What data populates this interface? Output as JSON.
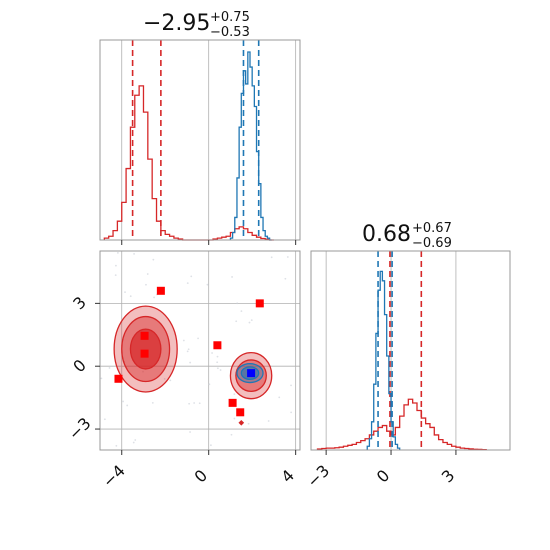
{
  "colors": {
    "red": "#d62728",
    "blue": "#1f77b4",
    "marker_red": "#ff0000",
    "marker_blue": "#0000ff",
    "grid": "#b0b0b0",
    "frame": "#999999"
  },
  "chart_data": [
    {
      "type": "histogram",
      "panel": "top-left",
      "title": "−2.95",
      "title_upper": "+0.75",
      "title_lower": "−0.53",
      "xlim": [
        -5.0,
        4.2
      ],
      "x_ticks": [
        "−4",
        "0",
        "4"
      ],
      "x_tick_values": [
        -4,
        0,
        4
      ],
      "grid": true,
      "series": [
        {
          "color": "#d62728",
          "quantile_lines": [
            -3.5,
            -2.2
          ],
          "bin_edges": [
            -4.8,
            -4.6,
            -4.4,
            -4.2,
            -4.0,
            -3.8,
            -3.6,
            -3.4,
            -3.2,
            -3.0,
            -2.8,
            -2.6,
            -2.4,
            -2.2,
            -2.0,
            -1.8,
            -1.6,
            -1.4,
            -1.2,
            -1.0,
            -0.8,
            -0.6,
            -0.4,
            -0.2,
            0.0,
            0.2,
            0.4,
            0.6,
            0.8,
            1.0,
            1.2,
            1.4,
            1.6,
            1.8,
            2.0,
            2.2,
            2.4,
            2.6,
            2.8,
            3.0
          ],
          "counts": [
            0.01,
            0.02,
            0.05,
            0.1,
            0.2,
            0.38,
            0.6,
            0.77,
            0.82,
            0.68,
            0.43,
            0.22,
            0.1,
            0.05,
            0.03,
            0.02,
            0.01,
            0.005,
            0.0,
            0.0,
            0.0,
            0.0,
            0.0,
            0.0,
            0.0,
            0.005,
            0.01,
            0.015,
            0.02,
            0.04,
            0.06,
            0.07,
            0.06,
            0.04,
            0.025,
            0.015,
            0.008,
            0.004,
            0.0
          ]
        },
        {
          "color": "#1f77b4",
          "quantile_lines": [
            1.6,
            2.3
          ],
          "bin_edges": [
            1.0,
            1.1,
            1.2,
            1.3,
            1.4,
            1.5,
            1.6,
            1.7,
            1.8,
            1.9,
            2.0,
            2.1,
            2.2,
            2.3,
            2.4,
            2.5,
            2.6,
            2.7,
            2.8,
            2.9
          ],
          "counts": [
            0.01,
            0.04,
            0.12,
            0.33,
            0.6,
            0.78,
            0.9,
            0.83,
            1.0,
            0.92,
            0.82,
            0.71,
            0.47,
            0.3,
            0.12,
            0.05,
            0.02,
            0.01,
            0.0
          ]
        }
      ]
    },
    {
      "type": "contour",
      "panel": "bottom-left",
      "xlim": [
        -5.0,
        4.2
      ],
      "ylim": [
        -4.0,
        5.5
      ],
      "x_ticks": [
        "−4",
        "0",
        "4"
      ],
      "x_tick_values": [
        -4,
        0,
        4
      ],
      "y_ticks": [
        "−3",
        "0",
        "3"
      ],
      "y_tick_values": [
        -3,
        0,
        3
      ],
      "grid": true,
      "red_contours": [
        {
          "cx": -2.9,
          "cy": 0.82,
          "rx": 1.45,
          "ry": 2.05
        },
        {
          "cx": -2.9,
          "cy": 0.82,
          "rx": 1.1,
          "ry": 1.55
        },
        {
          "cx": -2.9,
          "cy": 0.82,
          "rx": 0.7,
          "ry": 0.95
        },
        {
          "cx": 1.95,
          "cy": -0.45,
          "rx": 0.95,
          "ry": 1.1
        },
        {
          "cx": 1.95,
          "cy": -0.45,
          "rx": 0.7,
          "ry": 0.75
        }
      ],
      "blue_contours": [
        {
          "cx": 1.9,
          "cy": -0.33,
          "rx": 0.6,
          "ry": 0.45
        },
        {
          "cx": 1.9,
          "cy": -0.33,
          "rx": 0.4,
          "ry": 0.3
        }
      ],
      "red_markers": [
        {
          "x": -2.2,
          "y": 3.6
        },
        {
          "x": -2.95,
          "y": 1.45
        },
        {
          "x": -2.95,
          "y": 0.6
        },
        {
          "x": -4.15,
          "y": -0.6
        },
        {
          "x": 0.4,
          "y": 1.0
        },
        {
          "x": 2.35,
          "y": 3.0
        },
        {
          "x": 1.1,
          "y": -1.75
        },
        {
          "x": 1.45,
          "y": -2.2
        }
      ],
      "blue_marker": {
        "x": 1.95,
        "y": -0.33
      }
    },
    {
      "type": "histogram",
      "panel": "bottom-right",
      "title": "0.68",
      "title_upper": "+0.67",
      "title_lower": "−0.69",
      "xlim": [
        -3.7,
        5.5
      ],
      "x_ticks": [
        "−3",
        "0",
        "3"
      ],
      "x_tick_values": [
        -3,
        0,
        3
      ],
      "grid": true,
      "series": [
        {
          "color": "#d62728",
          "quantile_lines": [
            -0.05,
            1.4
          ],
          "bin_edges": [
            -3.4,
            -3.2,
            -3.0,
            -2.8,
            -2.6,
            -2.4,
            -2.2,
            -2.0,
            -1.8,
            -1.6,
            -1.4,
            -1.2,
            -1.0,
            -0.8,
            -0.6,
            -0.4,
            -0.2,
            0.0,
            0.2,
            0.4,
            0.6,
            0.8,
            1.0,
            1.2,
            1.4,
            1.6,
            1.8,
            2.0,
            2.2,
            2.4,
            2.6,
            2.8,
            3.0,
            3.2,
            3.4,
            3.6,
            3.8,
            4.0,
            4.2,
            4.4
          ],
          "counts": [
            0.005,
            0.008,
            0.01,
            0.01,
            0.012,
            0.015,
            0.02,
            0.025,
            0.03,
            0.04,
            0.05,
            0.06,
            0.08,
            0.1,
            0.12,
            0.13,
            0.1,
            0.08,
            0.12,
            0.18,
            0.24,
            0.27,
            0.25,
            0.21,
            0.17,
            0.14,
            0.12,
            0.08,
            0.055,
            0.04,
            0.03,
            0.02,
            0.015,
            0.01,
            0.008,
            0.006,
            0.004,
            0.003,
            0.002
          ]
        },
        {
          "color": "#1f77b4",
          "quantile_lines": [
            -0.6,
            0.05
          ],
          "bin_edges": [
            -1.1,
            -1.0,
            -0.9,
            -0.8,
            -0.7,
            -0.6,
            -0.5,
            -0.4,
            -0.3,
            -0.2,
            -0.1,
            0.0,
            0.1,
            0.2,
            0.3,
            0.4
          ],
          "counts": [
            0.02,
            0.06,
            0.15,
            0.35,
            0.62,
            0.85,
            0.95,
            0.9,
            0.72,
            0.5,
            0.3,
            0.15,
            0.07,
            0.03,
            0.01
          ]
        }
      ]
    }
  ]
}
